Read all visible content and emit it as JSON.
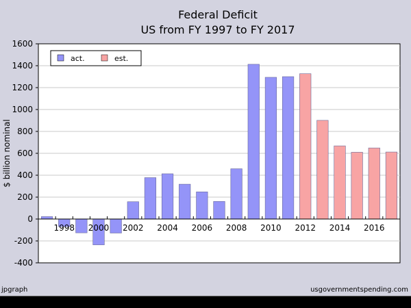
{
  "chart_data": {
    "type": "bar",
    "title": "Federal Deficit",
    "subtitle": "US from FY 1997 to FY 2017",
    "xlabel": "",
    "ylabel": "$ billion nominal",
    "ylim": [
      -400,
      1600
    ],
    "yticks": [
      -400,
      -200,
      0,
      200,
      400,
      600,
      800,
      1000,
      1200,
      1400,
      1600
    ],
    "x_tick_labels": [
      "1998",
      "2000",
      "2002",
      "2004",
      "2006",
      "2008",
      "2010",
      "2012",
      "2014",
      "2016"
    ],
    "categories": [
      "1997",
      "1998",
      "1999",
      "2000",
      "2001",
      "2002",
      "2003",
      "2004",
      "2005",
      "2006",
      "2007",
      "2008",
      "2009",
      "2010",
      "2011",
      "2012",
      "2013",
      "2014",
      "2015",
      "2016",
      "2017"
    ],
    "series": [
      {
        "name": "act.",
        "color": "#9494f8",
        "values": [
          22,
          -69,
          -126,
          -236,
          -128,
          158,
          378,
          413,
          318,
          248,
          161,
          459,
          1413,
          1294,
          1300,
          null,
          null,
          null,
          null,
          null,
          null
        ]
      },
      {
        "name": "est.",
        "color": "#f8a4a4",
        "values": [
          null,
          null,
          null,
          null,
          null,
          null,
          null,
          null,
          null,
          null,
          null,
          null,
          null,
          null,
          null,
          1327,
          901,
          668,
          610,
          649,
          612
        ]
      }
    ],
    "legend_position": "top-left",
    "grid": true
  },
  "footer": {
    "left": "jpgraph",
    "right": "usgovernmentspending.com"
  }
}
